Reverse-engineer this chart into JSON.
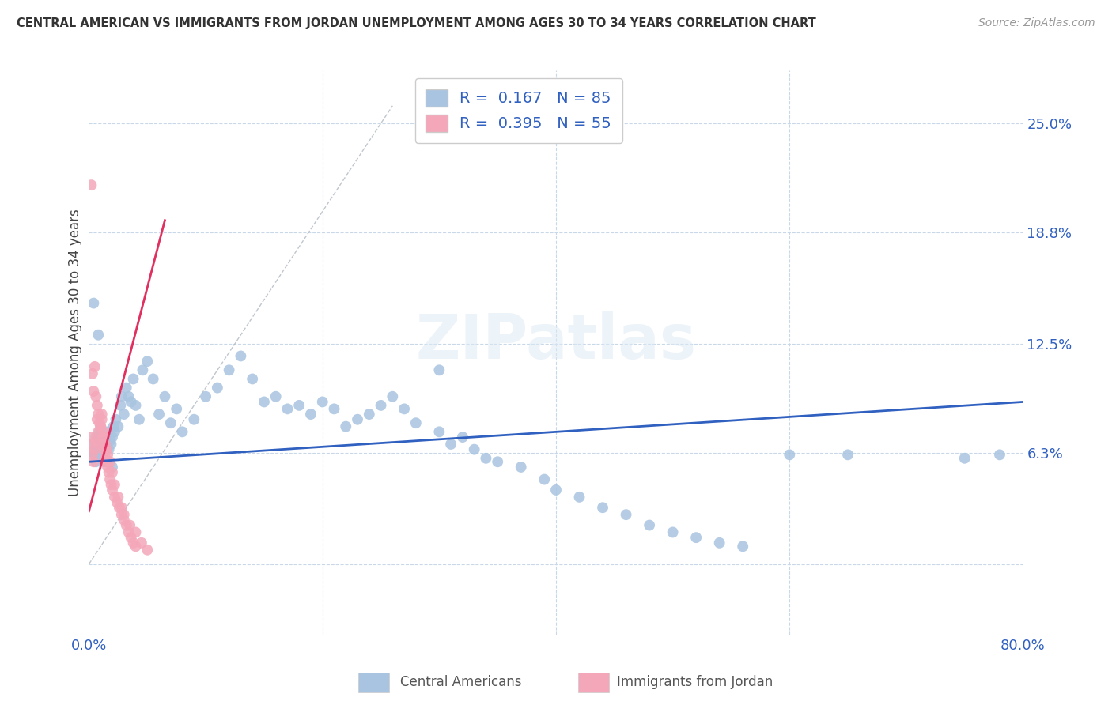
{
  "title": "CENTRAL AMERICAN VS IMMIGRANTS FROM JORDAN UNEMPLOYMENT AMONG AGES 30 TO 34 YEARS CORRELATION CHART",
  "source": "Source: ZipAtlas.com",
  "ylabel": "Unemployment Among Ages 30 to 34 years",
  "xlim": [
    0.0,
    0.8
  ],
  "ylim": [
    -0.04,
    0.28
  ],
  "yticks": [
    0.0,
    0.063,
    0.125,
    0.188,
    0.25
  ],
  "ytick_labels": [
    "",
    "6.3%",
    "12.5%",
    "18.8%",
    "25.0%"
  ],
  "xticks": [
    0.0,
    0.2,
    0.4,
    0.6,
    0.8
  ],
  "xtick_labels": [
    "0.0%",
    "",
    "",
    "",
    "80.0%"
  ],
  "blue_R": 0.167,
  "blue_N": 85,
  "pink_R": 0.395,
  "pink_N": 55,
  "blue_color": "#a8c4e0",
  "pink_color": "#f4a7b9",
  "blue_line_color": "#3060c0",
  "pink_line_color": "#e03060",
  "blue_trend_x": [
    0.0,
    0.8
  ],
  "blue_trend_y": [
    0.058,
    0.092
  ],
  "pink_trend_x": [
    0.0,
    0.065
  ],
  "pink_trend_y": [
    0.03,
    0.195
  ],
  "ref_line_x": [
    0.0,
    0.26
  ],
  "ref_line_y": [
    0.0,
    0.26
  ],
  "watermark": "ZIPatlas",
  "background_color": "#ffffff",
  "grid_color": "#c8d8e8",
  "blue_scatter_x": [
    0.003,
    0.004,
    0.005,
    0.006,
    0.007,
    0.008,
    0.009,
    0.01,
    0.011,
    0.012,
    0.013,
    0.014,
    0.015,
    0.016,
    0.017,
    0.018,
    0.019,
    0.02,
    0.021,
    0.022,
    0.023,
    0.025,
    0.027,
    0.028,
    0.03,
    0.032,
    0.034,
    0.036,
    0.038,
    0.04,
    0.043,
    0.046,
    0.05,
    0.055,
    0.06,
    0.065,
    0.07,
    0.075,
    0.08,
    0.09,
    0.1,
    0.11,
    0.12,
    0.13,
    0.14,
    0.15,
    0.16,
    0.17,
    0.18,
    0.19,
    0.2,
    0.21,
    0.22,
    0.23,
    0.24,
    0.25,
    0.26,
    0.27,
    0.28,
    0.3,
    0.31,
    0.32,
    0.33,
    0.34,
    0.35,
    0.37,
    0.39,
    0.4,
    0.42,
    0.44,
    0.46,
    0.48,
    0.5,
    0.52,
    0.54,
    0.56,
    0.6,
    0.65,
    0.75,
    0.78,
    0.004,
    0.006,
    0.008,
    0.02,
    0.3
  ],
  "blue_scatter_y": [
    0.068,
    0.063,
    0.062,
    0.072,
    0.065,
    0.07,
    0.075,
    0.065,
    0.06,
    0.062,
    0.058,
    0.072,
    0.068,
    0.075,
    0.065,
    0.07,
    0.068,
    0.072,
    0.078,
    0.075,
    0.082,
    0.078,
    0.09,
    0.095,
    0.085,
    0.1,
    0.095,
    0.092,
    0.105,
    0.09,
    0.082,
    0.11,
    0.115,
    0.105,
    0.085,
    0.095,
    0.08,
    0.088,
    0.075,
    0.082,
    0.095,
    0.1,
    0.11,
    0.118,
    0.105,
    0.092,
    0.095,
    0.088,
    0.09,
    0.085,
    0.092,
    0.088,
    0.078,
    0.082,
    0.085,
    0.09,
    0.095,
    0.088,
    0.08,
    0.075,
    0.068,
    0.072,
    0.065,
    0.06,
    0.058,
    0.055,
    0.048,
    0.042,
    0.038,
    0.032,
    0.028,
    0.022,
    0.018,
    0.015,
    0.012,
    0.01,
    0.062,
    0.062,
    0.06,
    0.062,
    0.148,
    0.058,
    0.13,
    0.055,
    0.11
  ],
  "pink_scatter_x": [
    0.001,
    0.002,
    0.003,
    0.004,
    0.005,
    0.006,
    0.007,
    0.008,
    0.009,
    0.01,
    0.011,
    0.012,
    0.013,
    0.014,
    0.015,
    0.016,
    0.017,
    0.018,
    0.019,
    0.02,
    0.022,
    0.024,
    0.026,
    0.028,
    0.03,
    0.032,
    0.034,
    0.036,
    0.038,
    0.04,
    0.002,
    0.003,
    0.004,
    0.005,
    0.006,
    0.007,
    0.008,
    0.009,
    0.01,
    0.011,
    0.012,
    0.013,
    0.014,
    0.015,
    0.016,
    0.018,
    0.02,
    0.022,
    0.025,
    0.028,
    0.03,
    0.035,
    0.04,
    0.045,
    0.05
  ],
  "pink_scatter_y": [
    0.068,
    0.072,
    0.062,
    0.058,
    0.065,
    0.07,
    0.082,
    0.075,
    0.068,
    0.078,
    0.085,
    0.072,
    0.065,
    0.06,
    0.058,
    0.055,
    0.052,
    0.048,
    0.045,
    0.042,
    0.038,
    0.035,
    0.032,
    0.028,
    0.025,
    0.022,
    0.018,
    0.015,
    0.012,
    0.01,
    0.215,
    0.108,
    0.098,
    0.112,
    0.095,
    0.09,
    0.085,
    0.08,
    0.078,
    0.082,
    0.075,
    0.072,
    0.068,
    0.065,
    0.062,
    0.058,
    0.052,
    0.045,
    0.038,
    0.032,
    0.028,
    0.022,
    0.018,
    0.012,
    0.008
  ]
}
